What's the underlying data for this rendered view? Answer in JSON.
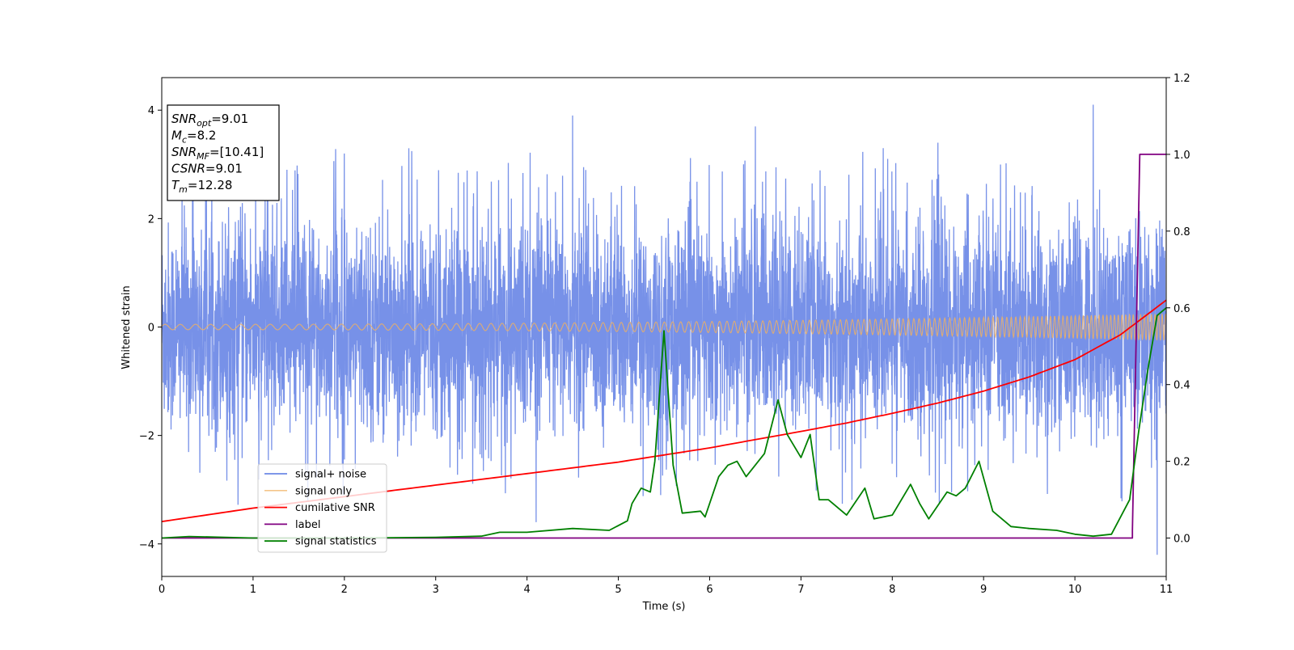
{
  "chart_data": {
    "type": "line",
    "xlabel": "Time (s)",
    "ylabel": "Whitened strain",
    "xlim": [
      0,
      11
    ],
    "ylim_left": [
      -4.6,
      4.6
    ],
    "ylim_right": [
      -0.1,
      1.2
    ],
    "x_ticks": [
      "0",
      "1",
      "2",
      "3",
      "4",
      "5",
      "6",
      "7",
      "8",
      "9",
      "10",
      "11"
    ],
    "y_left_ticks": [
      "−4",
      "−2",
      "0",
      "2",
      "4"
    ],
    "y_right_ticks": [
      "0.0",
      "0.2",
      "0.4",
      "0.6",
      "0.8",
      "1.0",
      "1.2"
    ],
    "colors": {
      "signal_noise": "#6b88e6",
      "signal_only": "#f0b060",
      "cumulative_snr": "#ff0000",
      "label": "#800080",
      "signal_statistics": "#008000"
    },
    "annotation": {
      "lines": [
        {
          "main": "SNR",
          "sub": "opt",
          "rest": "=9.01"
        },
        {
          "main": "M",
          "sub": "c",
          "rest": "=8.2"
        },
        {
          "main": "SNR",
          "sub": "MF",
          "rest": "=[10.41]"
        },
        {
          "main": "CSNR",
          "sub": "",
          "rest": "=9.01"
        },
        {
          "main": "T",
          "sub": "m",
          "rest": "=12.28"
        }
      ]
    },
    "legend": {
      "position": "lower-left",
      "entries": [
        {
          "label": "signal+ noise",
          "series": "signal_noise"
        },
        {
          "label": "signal only",
          "series": "signal_only"
        },
        {
          "label": "cumilative SNR",
          "series": "cumulative_snr"
        },
        {
          "label": "label",
          "series": "label"
        },
        {
          "label": "signal statistics",
          "series": "signal_statistics"
        }
      ]
    },
    "series": [
      {
        "key": "signal_noise",
        "axis": "left",
        "description_type": "noise",
        "amplitude_range": [
          -2.3,
          2.8
        ],
        "extreme_peaks": [
          [
            2.0,
            3.2
          ],
          [
            4.5,
            3.9
          ],
          [
            6.5,
            3.7
          ],
          [
            7.9,
            3.3
          ],
          [
            8.5,
            3.4
          ],
          [
            10.2,
            4.1
          ],
          [
            10.9,
            -4.2
          ],
          [
            1.6,
            -3.2
          ],
          [
            4.1,
            -3.6
          ]
        ]
      },
      {
        "key": "signal_only",
        "axis": "left",
        "description_type": "chirp",
        "amplitude_start": 0.05,
        "amplitude_end": 0.25
      },
      {
        "key": "cumulative_snr",
        "axis": "right",
        "x": [
          0,
          1,
          2,
          3,
          4,
          5,
          6,
          7,
          7.5,
          8,
          8.5,
          9,
          9.5,
          10,
          10.5,
          11
        ],
        "y": [
          0.043,
          0.078,
          0.108,
          0.138,
          0.168,
          0.198,
          0.235,
          0.278,
          0.3,
          0.325,
          0.352,
          0.383,
          0.42,
          0.465,
          0.53,
          0.62
        ]
      },
      {
        "key": "label",
        "axis": "right",
        "x": [
          0,
          10.63,
          10.63,
          10.71,
          11
        ],
        "y": [
          0.0,
          0.0,
          0.02,
          1.0,
          1.0
        ]
      },
      {
        "key": "signal_statistics",
        "axis": "right",
        "x": [
          0,
          0.3,
          1.0,
          1.5,
          2.0,
          2.5,
          3.0,
          3.5,
          3.7,
          4.0,
          4.5,
          4.9,
          5.1,
          5.15,
          5.25,
          5.35,
          5.4,
          5.5,
          5.6,
          5.7,
          5.9,
          5.95,
          6.1,
          6.2,
          6.3,
          6.4,
          6.6,
          6.75,
          6.85,
          7.0,
          7.1,
          7.2,
          7.3,
          7.5,
          7.7,
          7.8,
          8.0,
          8.2,
          8.3,
          8.4,
          8.6,
          8.7,
          8.8,
          8.95,
          9.1,
          9.3,
          9.5,
          9.8,
          10.0,
          10.2,
          10.4,
          10.6,
          10.7,
          10.8,
          10.9,
          11.0
        ],
        "y": [
          0.0,
          0.004,
          0.0,
          0.0,
          0.0,
          0.001,
          0.002,
          0.005,
          0.015,
          0.015,
          0.025,
          0.02,
          0.045,
          0.09,
          0.13,
          0.12,
          0.2,
          0.54,
          0.19,
          0.065,
          0.07,
          0.055,
          0.16,
          0.19,
          0.2,
          0.16,
          0.22,
          0.36,
          0.27,
          0.21,
          0.27,
          0.1,
          0.1,
          0.06,
          0.13,
          0.05,
          0.06,
          0.14,
          0.09,
          0.05,
          0.12,
          0.11,
          0.13,
          0.2,
          0.07,
          0.03,
          0.025,
          0.02,
          0.01,
          0.005,
          0.01,
          0.1,
          0.28,
          0.44,
          0.58,
          0.6
        ]
      }
    ]
  }
}
